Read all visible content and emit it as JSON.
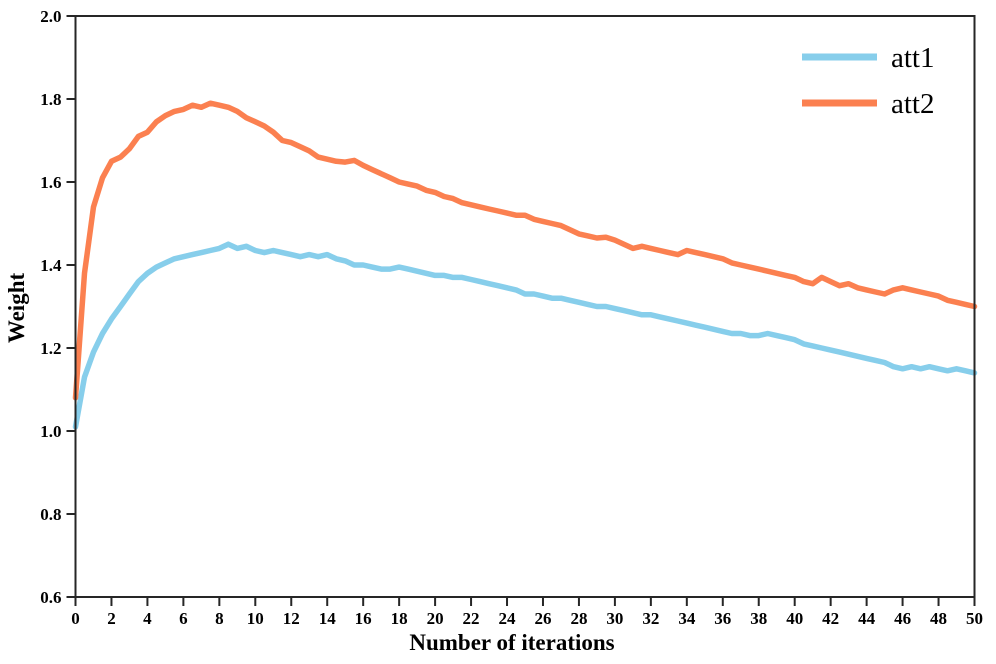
{
  "figure": {
    "background": "#ffffff",
    "axis_color": "#262626",
    "text_color": "#000000"
  },
  "chart_data": {
    "type": "line",
    "title": "",
    "xlabel": "Number of iterations",
    "ylabel": "Weight",
    "xlim": [
      0,
      50
    ],
    "ylim": [
      0.6,
      2.0
    ],
    "xticks": [
      0,
      2,
      4,
      6,
      8,
      10,
      12,
      14,
      16,
      18,
      20,
      22,
      24,
      26,
      28,
      30,
      32,
      34,
      36,
      38,
      40,
      42,
      44,
      46,
      48,
      50
    ],
    "yticks": [
      0.6,
      0.8,
      1.0,
      1.2,
      1.4,
      1.6,
      1.8,
      2.0
    ],
    "grid": false,
    "legend_position": "upper right",
    "x": [
      0,
      0.5,
      1,
      1.5,
      2,
      2.5,
      3,
      3.5,
      4,
      4.5,
      5,
      5.5,
      6,
      6.5,
      7,
      7.5,
      8,
      8.5,
      9,
      9.5,
      10,
      10.5,
      11,
      11.5,
      12,
      12.5,
      13,
      13.5,
      14,
      14.5,
      15,
      15.5,
      16,
      16.5,
      17,
      17.5,
      18,
      18.5,
      19,
      19.5,
      20,
      20.5,
      21,
      21.5,
      22,
      22.5,
      23,
      23.5,
      24,
      24.5,
      25,
      25.5,
      26,
      26.5,
      27,
      27.5,
      28,
      28.5,
      29,
      29.5,
      30,
      30.5,
      31,
      31.5,
      32,
      32.5,
      33,
      33.5,
      34,
      34.5,
      35,
      35.5,
      36,
      36.5,
      37,
      37.5,
      38,
      38.5,
      39,
      39.5,
      40,
      40.5,
      41,
      41.5,
      42,
      42.5,
      43,
      43.5,
      44,
      44.5,
      45,
      45.5,
      46,
      46.5,
      47,
      47.5,
      48,
      48.5,
      49,
      49.5,
      50
    ],
    "series": [
      {
        "name": "att1",
        "color": "#87CEEB",
        "values": [
          1.01,
          1.13,
          1.19,
          1.235,
          1.27,
          1.3,
          1.33,
          1.36,
          1.38,
          1.395,
          1.405,
          1.415,
          1.42,
          1.425,
          1.43,
          1.435,
          1.44,
          1.45,
          1.44,
          1.445,
          1.435,
          1.43,
          1.435,
          1.43,
          1.425,
          1.42,
          1.425,
          1.42,
          1.425,
          1.415,
          1.41,
          1.4,
          1.4,
          1.395,
          1.39,
          1.39,
          1.395,
          1.39,
          1.385,
          1.38,
          1.375,
          1.375,
          1.37,
          1.37,
          1.365,
          1.36,
          1.355,
          1.35,
          1.345,
          1.34,
          1.33,
          1.33,
          1.325,
          1.32,
          1.32,
          1.315,
          1.31,
          1.305,
          1.3,
          1.3,
          1.295,
          1.29,
          1.285,
          1.28,
          1.28,
          1.275,
          1.27,
          1.265,
          1.26,
          1.255,
          1.25,
          1.245,
          1.24,
          1.235,
          1.235,
          1.23,
          1.23,
          1.235,
          1.23,
          1.225,
          1.22,
          1.21,
          1.205,
          1.2,
          1.195,
          1.19,
          1.185,
          1.18,
          1.175,
          1.17,
          1.165,
          1.155,
          1.15,
          1.155,
          1.15,
          1.155,
          1.15,
          1.145,
          1.15,
          1.145,
          1.14
        ]
      },
      {
        "name": "att2",
        "color": "#FB8050",
        "values": [
          1.08,
          1.38,
          1.54,
          1.61,
          1.65,
          1.66,
          1.68,
          1.71,
          1.72,
          1.745,
          1.76,
          1.77,
          1.775,
          1.785,
          1.78,
          1.79,
          1.785,
          1.78,
          1.77,
          1.755,
          1.745,
          1.735,
          1.72,
          1.7,
          1.695,
          1.685,
          1.675,
          1.66,
          1.655,
          1.65,
          1.648,
          1.652,
          1.64,
          1.63,
          1.62,
          1.61,
          1.6,
          1.595,
          1.59,
          1.58,
          1.575,
          1.565,
          1.56,
          1.55,
          1.545,
          1.54,
          1.535,
          1.53,
          1.525,
          1.52,
          1.52,
          1.51,
          1.505,
          1.5,
          1.495,
          1.485,
          1.475,
          1.47,
          1.465,
          1.467,
          1.46,
          1.45,
          1.44,
          1.445,
          1.44,
          1.435,
          1.43,
          1.425,
          1.435,
          1.43,
          1.425,
          1.42,
          1.415,
          1.405,
          1.4,
          1.395,
          1.39,
          1.385,
          1.38,
          1.375,
          1.37,
          1.36,
          1.355,
          1.37,
          1.36,
          1.35,
          1.355,
          1.345,
          1.34,
          1.335,
          1.33,
          1.34,
          1.345,
          1.34,
          1.335,
          1.33,
          1.325,
          1.315,
          1.31,
          1.305,
          1.3
        ]
      }
    ]
  },
  "legend": {
    "entries": [
      {
        "label": "att1",
        "color": "#87CEEB"
      },
      {
        "label": "att2",
        "color": "#FB8050"
      }
    ]
  }
}
